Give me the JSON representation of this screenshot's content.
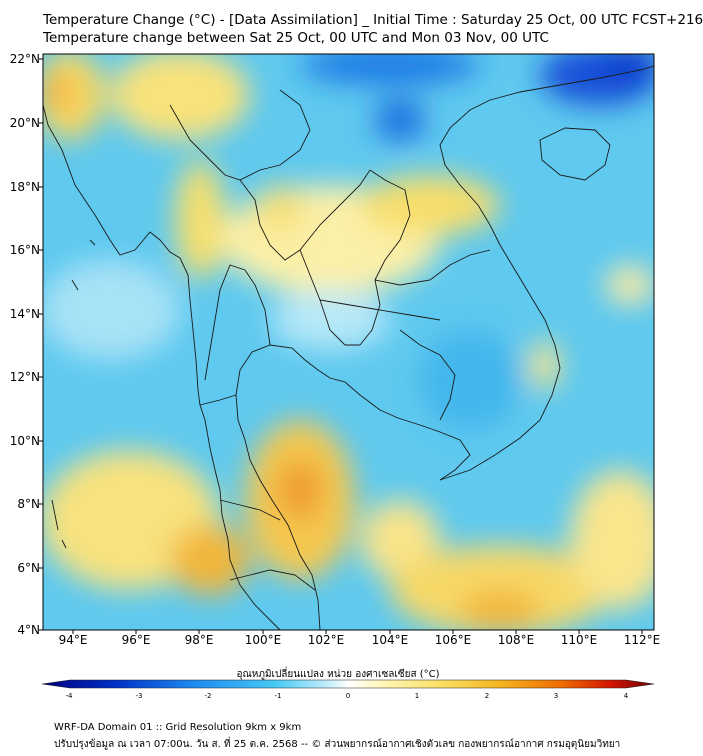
{
  "title": {
    "line1": "Temperature Change (°C) - [Data Assimilation] _ Initial Time : Saturday 25 Oct, 00 UTC FCST+216",
    "line2": "Temperature change between Sat 25 Oct, 00 UTC and Mon 03 Nov, 00 UTC"
  },
  "map": {
    "lat_labels": [
      "22°N",
      "20°N",
      "18°N",
      "16°N",
      "14°N",
      "12°N",
      "10°N",
      "8°N",
      "6°N",
      "4°N"
    ],
    "lon_labels": [
      "94°E",
      "96°E",
      "98°E",
      "100°E",
      "102°E",
      "104°E",
      "106°E",
      "108°E",
      "110°E",
      "112°E"
    ],
    "background_color": "#5fc9ef"
  },
  "colorbar": {
    "title": "อุณหภูมิเปลี่ยนแปลง หน่วย องศาเซลเซียส (°C)",
    "ticks": [
      "-4",
      "-3",
      "-2",
      "-1",
      "0",
      "1",
      "2",
      "3",
      "4"
    ],
    "colors": [
      "#00007f",
      "#0030c8",
      "#1e8cf0",
      "#46c8f5",
      "#c8f0fa",
      "#ffffff",
      "#fff5b4",
      "#fae164",
      "#f5b41e",
      "#ef6a00",
      "#d21400",
      "#6e0000"
    ]
  },
  "footer": {
    "line1": "WRF-DA Domain 01 :: Grid Resolution 9km x 9km",
    "line2": "ปรับปรุงข้อมูล ณ เวลา 07:00น. วัน ส. ที่ 25 ต.ค. 2568 -- © ส่วนพยากรณ์อากาศเชิงตัวเลข กองพยากรณ์อากาศ กรมอุตุนิยมวิทยา"
  }
}
